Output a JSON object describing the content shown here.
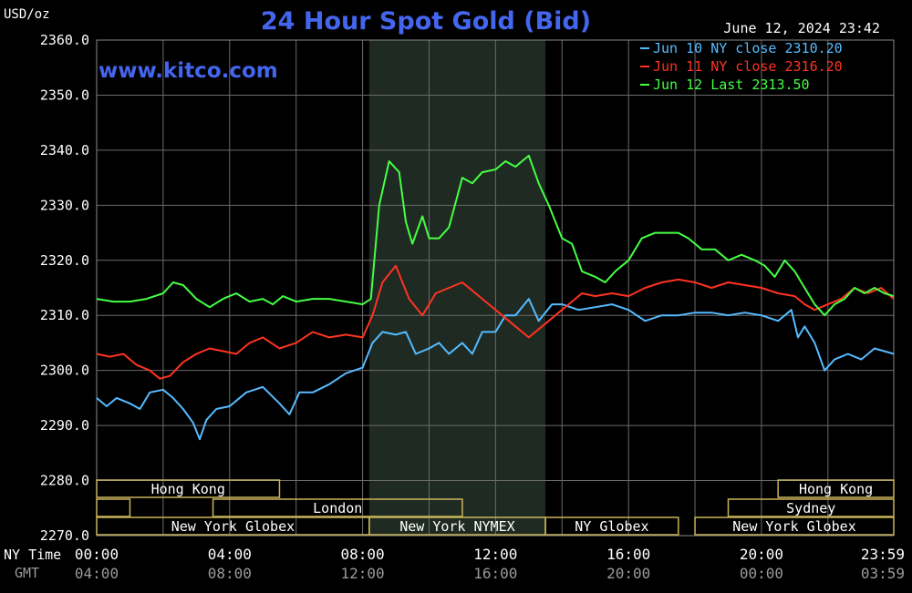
{
  "header": {
    "unit": "USD/oz",
    "title": "24 Hour Spot Gold (Bid)",
    "datetime": "June 12, 2024 23:42",
    "watermark": "www.kitco.com"
  },
  "colors": {
    "background": "#000000",
    "grid": "#6a6a6a",
    "session_shade": "#1f2a22",
    "session_box": "#c8b45a",
    "title": "#4466ee",
    "tick_text": "#ffffff",
    "gmt_text": "#9a9a9a",
    "jun10": "#55bbff",
    "jun11": "#ff3322",
    "jun12": "#44ff44"
  },
  "axis_labels": {
    "ny_time": "NY Time",
    "gmt": "GMT"
  },
  "legend": [
    {
      "text": "Jun 10 NY close 2310.20",
      "color": "#55bbff"
    },
    {
      "text": "Jun 11 NY close 2316.20",
      "color": "#ff3322"
    },
    {
      "text": "Jun 12 Last 2313.50",
      "color": "#44ff44"
    }
  ],
  "sessions": [
    {
      "label": "Hong Kong",
      "row": 0,
      "start": 0,
      "end": 5.5
    },
    {
      "label": "",
      "row": 1,
      "start": 0,
      "end": 1
    },
    {
      "label": "London",
      "row": 1,
      "start": 3.5,
      "end": 11
    },
    {
      "label": "New York Globex",
      "row": 2,
      "start": 0,
      "end": 8.2
    },
    {
      "label": "New York NYMEX",
      "row": 2,
      "start": 8.2,
      "end": 13.5
    },
    {
      "label": "NY Globex",
      "row": 2,
      "start": 13.5,
      "end": 17.5
    },
    {
      "label": "Hong Kong",
      "row": 0,
      "start": 20.5,
      "end": 23.98
    },
    {
      "label": "Sydney",
      "row": 1,
      "start": 19,
      "end": 23.98
    },
    {
      "label": "New York Globex",
      "row": 2,
      "start": 18,
      "end": 23.98
    }
  ],
  "chart_data": {
    "type": "line",
    "title": "24 Hour Spot Gold (Bid)",
    "ylabel": "USD/oz",
    "ylim": [
      2270,
      2360
    ],
    "xlim": [
      0,
      23.98
    ],
    "yticks": [
      2270,
      2280,
      2290,
      2300,
      2310,
      2320,
      2330,
      2340,
      2350,
      2360
    ],
    "ytick_labels": [
      "2270.0",
      "2280.0",
      "2290.0",
      "2300.0",
      "2310.0",
      "2320.0",
      "2330.0",
      "2340.0",
      "2350.0",
      "2360.0"
    ],
    "xticks": [
      0,
      4,
      8,
      12,
      16,
      20,
      23.98
    ],
    "xtick_labels_ny": [
      "00:00",
      "04:00",
      "08:00",
      "12:00",
      "16:00",
      "20:00",
      "23:59"
    ],
    "xtick_labels_gmt": [
      "04:00",
      "08:00",
      "12:00",
      "16:00",
      "20:00",
      "00:00",
      "03:59"
    ],
    "grid": true,
    "highlight_range": [
      8.2,
      13.5
    ],
    "legend_position": "top-right",
    "series": [
      {
        "name": "Jun 10 NY close 2310.20",
        "color": "#55bbff",
        "x": [
          0,
          0.3,
          0.6,
          1,
          1.3,
          1.6,
          2,
          2.3,
          2.6,
          2.9,
          3.1,
          3.3,
          3.6,
          4,
          4.5,
          5,
          5.5,
          5.8,
          6.1,
          6.5,
          7,
          7.5,
          8,
          8.3,
          8.6,
          9,
          9.3,
          9.6,
          10,
          10.3,
          10.6,
          11,
          11.3,
          11.6,
          12,
          12.3,
          12.6,
          13,
          13.3,
          13.7,
          14,
          14.5,
          15,
          15.5,
          16,
          16.5,
          17,
          17.5,
          18,
          18.5,
          19,
          19.5,
          20,
          20.5,
          20.9,
          21.1,
          21.3,
          21.6,
          21.9,
          22.2,
          22.6,
          23,
          23.4,
          23.98
        ],
        "y": [
          2295,
          2293.5,
          2295,
          2294,
          2293,
          2296,
          2296.5,
          2295,
          2293,
          2290.5,
          2287.5,
          2291,
          2293,
          2293.5,
          2296,
          2297,
          2294,
          2292,
          2296,
          2296,
          2297.5,
          2299.5,
          2300.5,
          2305,
          2307,
          2306.5,
          2307,
          2303,
          2304,
          2305,
          2303,
          2305,
          2303,
          2307,
          2307,
          2310,
          2310,
          2313,
          2309,
          2312,
          2312,
          2311,
          2311.5,
          2312,
          2311,
          2309,
          2310,
          2310,
          2310.5,
          2310.5,
          2310,
          2310.5,
          2310,
          2309,
          2311,
          2306,
          2308,
          2305,
          2300,
          2302,
          2303,
          2302,
          2304,
          2303
        ]
      },
      {
        "name": "Jun 11 NY close 2316.20",
        "color": "#ff3322",
        "x": [
          0,
          0.4,
          0.8,
          1.2,
          1.6,
          1.9,
          2.2,
          2.6,
          3,
          3.4,
          3.8,
          4.2,
          4.6,
          5,
          5.5,
          6,
          6.5,
          7,
          7.5,
          8,
          8.3,
          8.6,
          9,
          9.4,
          9.8,
          10.2,
          10.6,
          11,
          11.4,
          11.8,
          12.2,
          12.6,
          13,
          13.4,
          13.8,
          14.2,
          14.6,
          15,
          15.5,
          16,
          16.5,
          17,
          17.5,
          18,
          18.5,
          19,
          19.5,
          20,
          20.5,
          21,
          21.3,
          21.6,
          22,
          22.4,
          22.8,
          23.2,
          23.6,
          23.98
        ],
        "y": [
          2303,
          2302.5,
          2303,
          2301,
          2300,
          2298.5,
          2299,
          2301.5,
          2303,
          2304,
          2303.5,
          2303,
          2305,
          2306,
          2304,
          2305,
          2307,
          2306,
          2306.5,
          2306,
          2310,
          2316,
          2319,
          2313,
          2310,
          2314,
          2315,
          2316,
          2314,
          2312,
          2310,
          2308,
          2306,
          2308,
          2310,
          2312,
          2314,
          2313.5,
          2314,
          2313.5,
          2315,
          2316,
          2316.5,
          2316,
          2315,
          2316,
          2315.5,
          2315,
          2314,
          2313.5,
          2312,
          2311,
          2312,
          2313,
          2315,
          2314,
          2315,
          2313
        ]
      },
      {
        "name": "Jun 12 Last 2313.50",
        "color": "#44ff44",
        "x": [
          0,
          0.5,
          1,
          1.5,
          2,
          2.3,
          2.6,
          3,
          3.4,
          3.8,
          4.2,
          4.6,
          5,
          5.3,
          5.6,
          6,
          6.5,
          7,
          7.5,
          8,
          8.25,
          8.5,
          8.8,
          9.1,
          9.3,
          9.5,
          9.8,
          10,
          10.3,
          10.6,
          11,
          11.3,
          11.6,
          12,
          12.3,
          12.6,
          13,
          13.3,
          13.6,
          14,
          14.3,
          14.6,
          15,
          15.3,
          15.6,
          16,
          16.4,
          16.8,
          17.1,
          17.5,
          17.8,
          18.2,
          18.6,
          19,
          19.4,
          19.8,
          20.1,
          20.4,
          20.7,
          21,
          21.3,
          21.6,
          21.9,
          22.2,
          22.5,
          22.8,
          23.1,
          23.4,
          23.7,
          23.98
        ],
        "y": [
          2313,
          2312.5,
          2312.5,
          2313,
          2314,
          2316,
          2315.5,
          2313,
          2311.5,
          2313,
          2314,
          2312.5,
          2313,
          2312,
          2313.5,
          2312.5,
          2313,
          2313,
          2312.5,
          2312,
          2313,
          2330,
          2338,
          2336,
          2327,
          2323,
          2328,
          2324,
          2324,
          2326,
          2335,
          2334,
          2336,
          2336.5,
          2338,
          2337,
          2339,
          2334,
          2330,
          2324,
          2323,
          2318,
          2317,
          2316,
          2318,
          2320,
          2324,
          2325,
          2325,
          2325,
          2324,
          2322,
          2322,
          2320,
          2321,
          2320,
          2319,
          2317,
          2320,
          2318,
          2315,
          2312,
          2310,
          2312,
          2313,
          2315,
          2314,
          2315,
          2314,
          2313.5
        ]
      }
    ]
  }
}
